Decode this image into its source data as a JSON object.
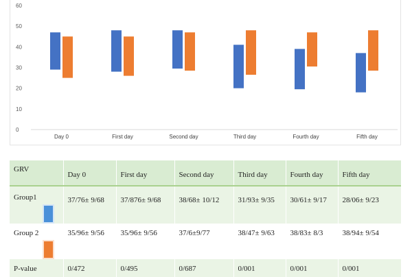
{
  "chart_data": {
    "type": "bar",
    "subtype": "floating-range",
    "categories": [
      "Day 0",
      "First day",
      "Second day",
      "Third day",
      "Fourth day",
      "Fifth day"
    ],
    "series": [
      {
        "color": "#4472c4",
        "ranges": [
          [
            29,
            47
          ],
          [
            28,
            48
          ],
          [
            29.5,
            48
          ],
          [
            20,
            41
          ],
          [
            19.5,
            39
          ],
          [
            18,
            37
          ]
        ]
      },
      {
        "color": "#ed7d31",
        "ranges": [
          [
            25,
            45
          ],
          [
            26,
            45
          ],
          [
            28.5,
            47
          ],
          [
            26.5,
            48
          ],
          [
            30.5,
            47
          ],
          [
            28.5,
            48
          ]
        ]
      }
    ],
    "yticks": [
      "0",
      "10",
      "20",
      "30",
      "40",
      "50",
      "60"
    ],
    "ylim": [
      0,
      60
    ],
    "grid": false,
    "legend": "none"
  },
  "table": {
    "header": [
      "GRV",
      "Day 0",
      "First day",
      "Second day",
      "Third day",
      "Fourth day",
      "Fifth day"
    ],
    "rows": [
      {
        "label": "Group1",
        "swatch_color": "#4a90d9",
        "cells": [
          "37/76± 9/68",
          "37/876± 9/68",
          "38/68± 10/12",
          "31/93± 9/35",
          "30/61± 9/17",
          "28/06± 9/23"
        ]
      },
      {
        "label": "Group 2",
        "swatch_color": "#ed7d31",
        "cells": [
          "35/96± 9/56",
          "35/96± 9/56",
          "37/6±9/77",
          "38/47± 9/63",
          "38/83± 8/3",
          "38/94± 9/54"
        ]
      },
      {
        "label": "P-value",
        "swatch_color": "",
        "cells": [
          "0/472",
          "0/495",
          "0/687",
          "0/001",
          "0/001",
          "0/001"
        ]
      }
    ]
  }
}
